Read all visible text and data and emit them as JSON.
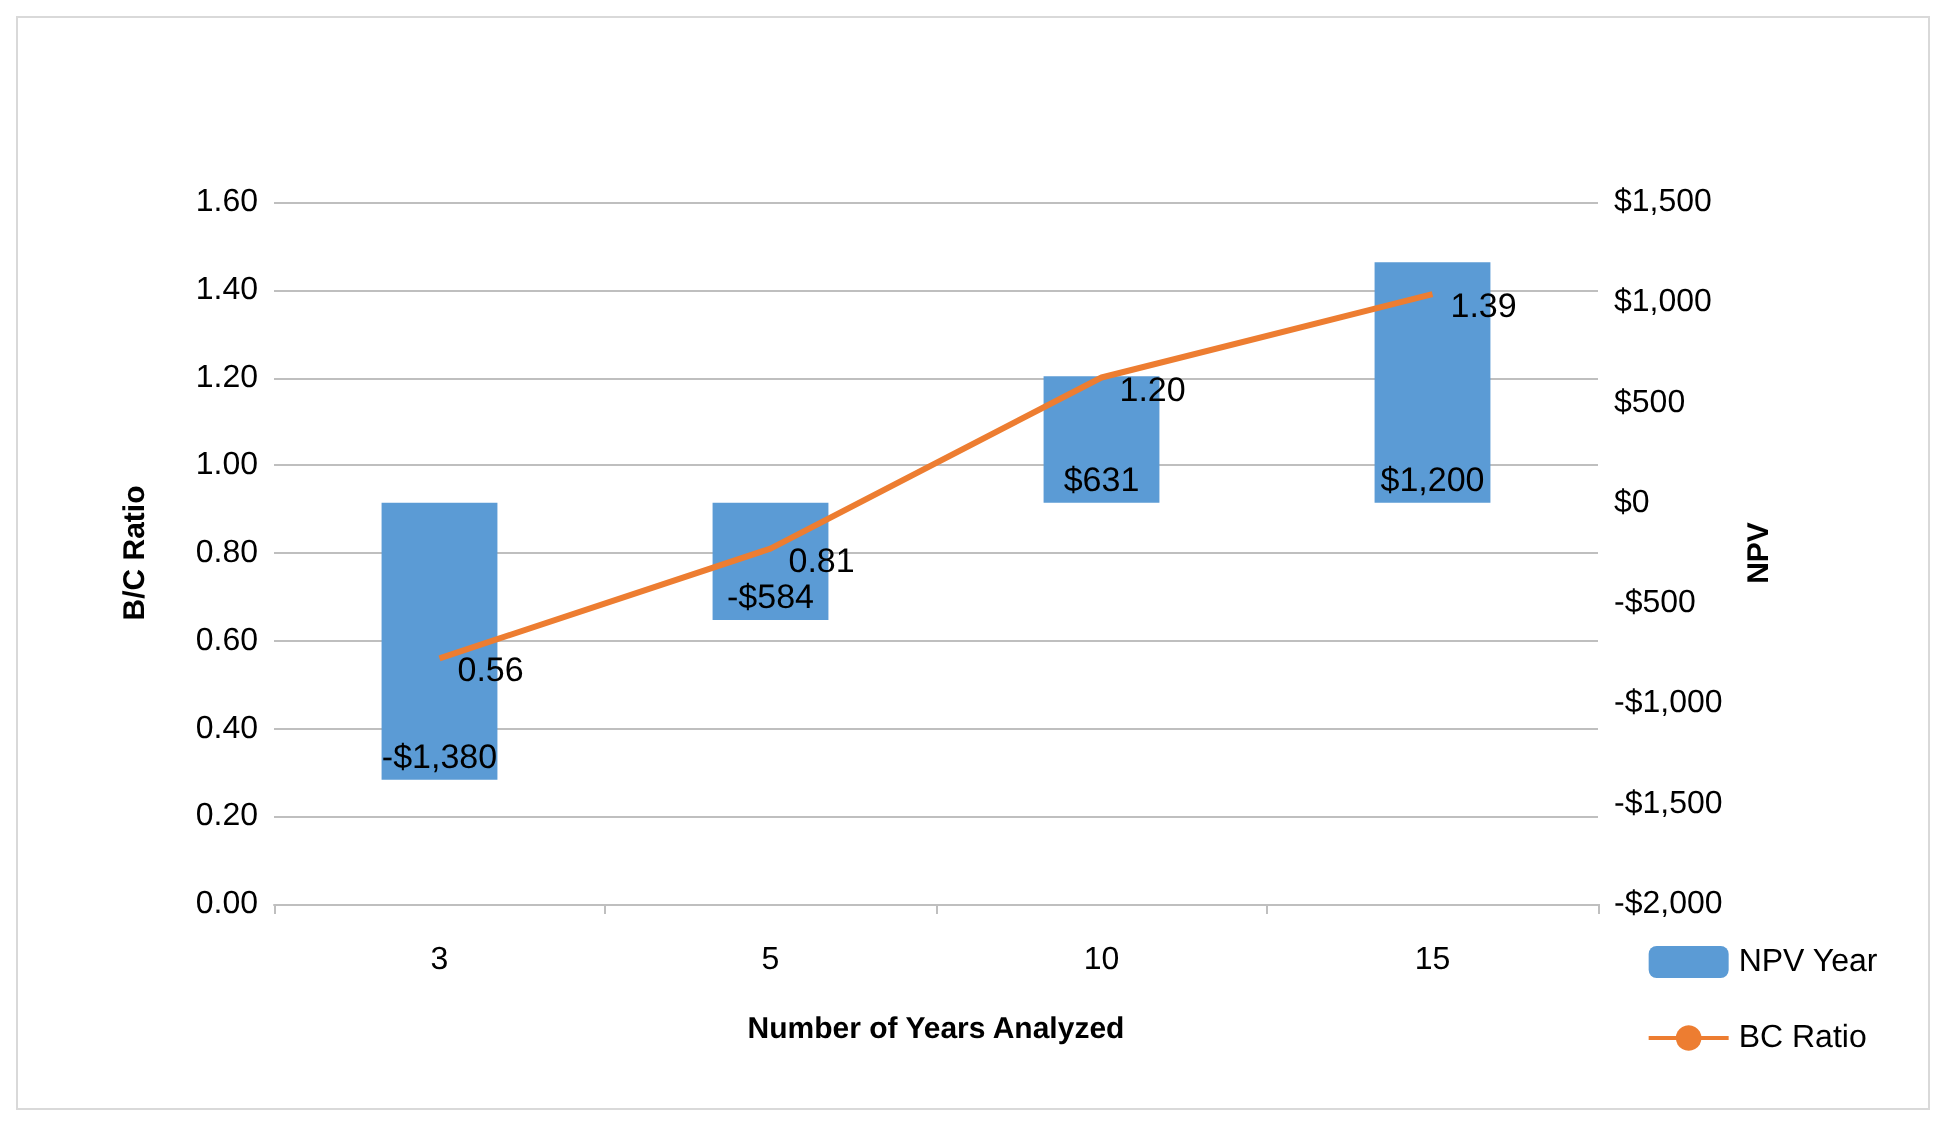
{
  "chart_data": {
    "type": "bar",
    "xlabel": "Number of Years Analyzed",
    "ylabel": "B/C Ratio",
    "y2label": "NPV",
    "categories": [
      "3",
      "5",
      "10",
      "15"
    ],
    "series": [
      {
        "name": "NPV Year",
        "axis": "y2",
        "color": "#5b9bd5",
        "values": [
          -1380,
          -584,
          631,
          1200
        ],
        "value_labels": [
          "-$1,380",
          "-$584",
          "$631",
          "$1,200"
        ]
      },
      {
        "name": "BC Ratio",
        "type": "line",
        "color": "#ed7d31",
        "values": [
          0.56,
          0.81,
          1.2,
          1.39
        ],
        "value_labels": [
          "0.56",
          "0.81",
          "1.20",
          "1.39"
        ],
        "marker": "none",
        "line_style": "solid"
      }
    ],
    "ylim": [
      0,
      1.6
    ],
    "yticks": [
      {
        "value": 0,
        "label": "0.00"
      },
      {
        "value": 0.2,
        "label": "0.20"
      },
      {
        "value": 0.4,
        "label": "0.40"
      },
      {
        "value": 0.6,
        "label": "0.60"
      },
      {
        "value": 0.8,
        "label": "0.80"
      },
      {
        "value": 1.0,
        "label": "1.00"
      },
      {
        "value": 1.2,
        "label": "1.20"
      },
      {
        "value": 1.4,
        "label": "1.40"
      },
      {
        "value": 1.6,
        "label": "1.60"
      }
    ],
    "y2lim": [
      -2000,
      1500
    ],
    "y2ticks": [
      {
        "value": -2000,
        "label": "-$2,000"
      },
      {
        "value": -1500,
        "label": "-$1,500"
      },
      {
        "value": -1000,
        "label": "-$1,000"
      },
      {
        "value": -500,
        "label": "-$500"
      },
      {
        "value": 0,
        "label": "$0"
      },
      {
        "value": 500,
        "label": "$500"
      },
      {
        "value": 1000,
        "label": "$1,000"
      },
      {
        "value": 1500,
        "label": "$1,500"
      }
    ],
    "grid": "y",
    "legend": "bottom right"
  }
}
